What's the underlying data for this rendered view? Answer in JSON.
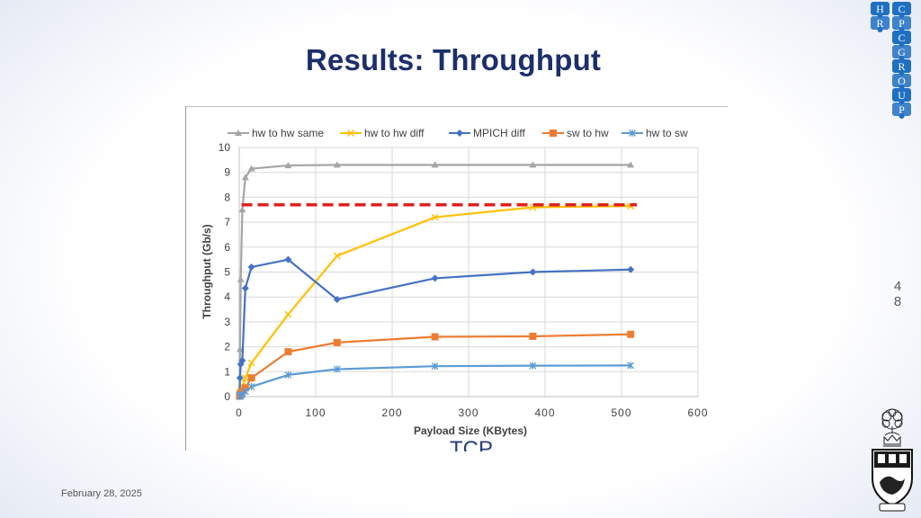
{
  "slide": {
    "title": "Results: Throughput",
    "page_number": "4\n8",
    "footer_date": "February 28, 2025",
    "overlay_label": "TCP"
  },
  "logo": {
    "letters": [
      "H",
      "C",
      "R",
      "P",
      "C",
      "G",
      "R",
      "O",
      "U",
      "P"
    ],
    "color": "#1f6fc2"
  },
  "chart_data": {
    "type": "line",
    "title": "",
    "xlabel": "Payload Size (KBytes)",
    "ylabel": "Throughput (Gb/s)",
    "xlim": [
      0,
      600
    ],
    "ylim": [
      0,
      10
    ],
    "xticks": [
      0,
      100,
      200,
      300,
      400,
      500,
      600
    ],
    "yticks": [
      0,
      1,
      2,
      3,
      4,
      5,
      6,
      7,
      8,
      9,
      10
    ],
    "grid": true,
    "legend_position": "top",
    "reference_line": {
      "y": 7.7,
      "color": "#e0211b",
      "style": "dashed"
    },
    "series": [
      {
        "name": "hw to hw same",
        "color": "#a5a5a5",
        "marker": "triangle",
        "x": [
          0.5,
          1,
          2,
          4,
          8,
          16,
          64,
          128,
          256,
          384,
          512
        ],
        "y": [
          0.3,
          1.9,
          4.7,
          7.5,
          8.8,
          9.15,
          9.28,
          9.3,
          9.3,
          9.3,
          9.3
        ]
      },
      {
        "name": "hw to hw diff",
        "color": "#ffc000",
        "marker": "x",
        "x": [
          0.5,
          1,
          2,
          4,
          8,
          16,
          64,
          128,
          256,
          384,
          512
        ],
        "y": [
          0.05,
          0.1,
          0.2,
          0.4,
          0.75,
          1.35,
          3.3,
          5.65,
          7.2,
          7.6,
          7.65
        ]
      },
      {
        "name": "MPICH diff",
        "color": "#4472c4",
        "marker": "diamond",
        "x": [
          0.5,
          1,
          2,
          4,
          8,
          16,
          64,
          128,
          256,
          384,
          512
        ],
        "y": [
          0.05,
          0.75,
          1.3,
          1.45,
          4.35,
          5.2,
          5.5,
          3.9,
          4.75,
          5.0,
          5.1
        ]
      },
      {
        "name": "sw to hw",
        "color": "#ed7d31",
        "marker": "square",
        "x": [
          0.5,
          1,
          2,
          4,
          8,
          16,
          64,
          128,
          256,
          384,
          512
        ],
        "y": [
          0.02,
          0.05,
          0.1,
          0.2,
          0.35,
          0.75,
          1.8,
          2.17,
          2.4,
          2.42,
          2.5
        ]
      },
      {
        "name": "hw to sw",
        "color": "#5b9bd5",
        "marker": "star",
        "x": [
          0.5,
          1,
          2,
          4,
          8,
          16,
          64,
          128,
          256,
          384,
          512
        ],
        "y": [
          0.01,
          0.02,
          0.05,
          0.1,
          0.2,
          0.4,
          0.87,
          1.1,
          1.22,
          1.24,
          1.25
        ]
      }
    ]
  }
}
